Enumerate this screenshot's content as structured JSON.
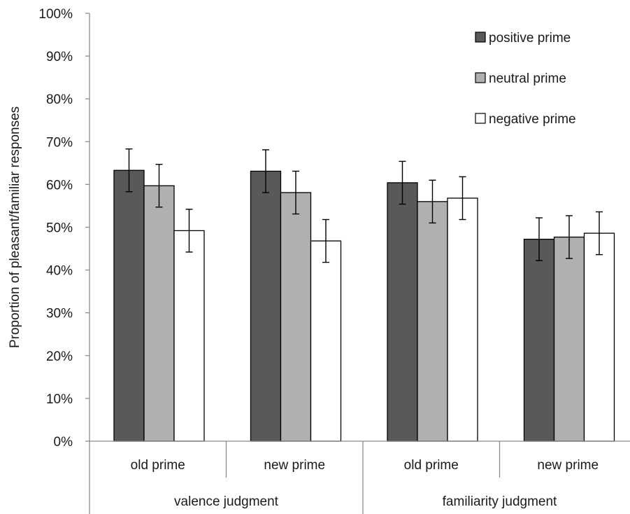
{
  "chart_data": {
    "type": "bar",
    "ylabel": "Proportion of pleasant/familiar responses",
    "xlabel": "",
    "ylim": [
      0,
      1
    ],
    "yticks": [
      0,
      0.1,
      0.2,
      0.3,
      0.4,
      0.5,
      0.6,
      0.7,
      0.8,
      0.9,
      1.0
    ],
    "ytick_labels": [
      "0%",
      "10%",
      "20%",
      "30%",
      "40%",
      "50%",
      "60%",
      "70%",
      "80%",
      "90%",
      "100%"
    ],
    "categories": [
      "old prime",
      "new prime",
      "old prime",
      "new prime"
    ],
    "groups": [
      {
        "label": "valence judgment",
        "span": [
          0,
          1
        ]
      },
      {
        "label": "familiarity judgment",
        "span": [
          2,
          3
        ]
      }
    ],
    "series": [
      {
        "name": "positive prime",
        "color": "#595959",
        "values": [
          0.633,
          0.631,
          0.604,
          0.472
        ],
        "error": [
          0.05,
          0.05,
          0.05,
          0.05
        ]
      },
      {
        "name": "neutral prime",
        "color": "#b0b0b0",
        "values": [
          0.597,
          0.581,
          0.56,
          0.477
        ],
        "error": [
          0.05,
          0.05,
          0.05,
          0.05
        ]
      },
      {
        "name": "negative prime",
        "color": "#ffffff",
        "values": [
          0.492,
          0.468,
          0.568,
          0.486
        ],
        "error": [
          0.05,
          0.05,
          0.05,
          0.05
        ]
      }
    ],
    "legend_position": "top-right",
    "grid": false
  }
}
